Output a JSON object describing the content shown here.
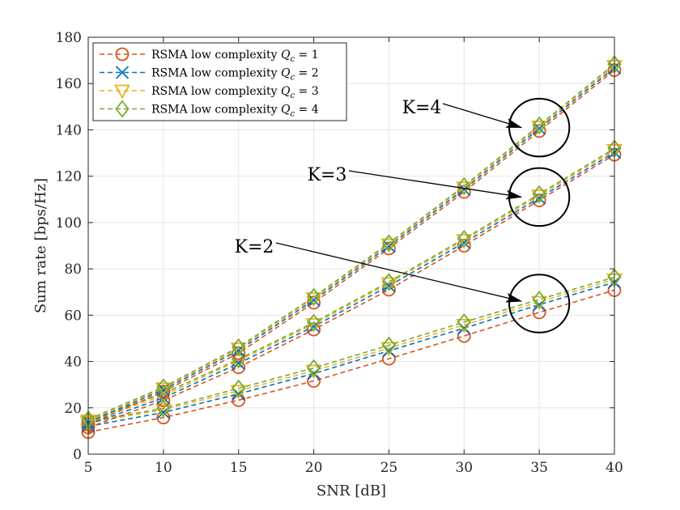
{
  "chart_data": {
    "type": "line",
    "xlabel": "SNR [dB]",
    "ylabel": "Sum rate [bps/Hz]",
    "xlim": [
      5,
      40
    ],
    "ylim": [
      0,
      180
    ],
    "xticks": [
      5,
      10,
      15,
      20,
      25,
      30,
      35,
      40
    ],
    "yticks": [
      0,
      20,
      40,
      60,
      80,
      100,
      120,
      140,
      160,
      180
    ],
    "grid": true,
    "legend_position": "top-left",
    "x": [
      5,
      10,
      15,
      20,
      25,
      30,
      35,
      40
    ],
    "series": [
      {
        "name": "RSMA low complexity Qc = 1",
        "legend_prefix": "RSMA low complexity ",
        "legend_var": "Q",
        "legend_sub": "c",
        "legend_suffix": " = 1",
        "color": "#d95319",
        "marker": "circle",
        "group": "K=2",
        "values": [
          9.5,
          15.8,
          23.3,
          31.6,
          41.2,
          51.0,
          61.2,
          70.8
        ]
      },
      {
        "name": "RSMA low complexity Qc = 2",
        "legend_prefix": "RSMA low complexity ",
        "legend_var": "Q",
        "legend_sub": "c",
        "legend_suffix": " = 2",
        "color": "#0072bd",
        "marker": "x",
        "group": "K=2",
        "values": [
          12.0,
          18.0,
          26.0,
          34.8,
          44.6,
          54.4,
          64.5,
          74.2
        ]
      },
      {
        "name": "RSMA low complexity Qc = 3",
        "legend_prefix": "RSMA low complexity ",
        "legend_var": "Q",
        "legend_sub": "c",
        "legend_suffix": " = 3",
        "color": "#edb120",
        "marker": "triangle-down",
        "group": "K=2",
        "values": [
          13.5,
          19.2,
          27.3,
          36.0,
          45.8,
          55.8,
          65.7,
          75.4
        ]
      },
      {
        "name": "RSMA low complexity Qc = 4",
        "legend_prefix": "RSMA low complexity ",
        "legend_var": "Q",
        "legend_sub": "c",
        "legend_suffix": " = 4",
        "color": "#77ac30",
        "marker": "diamond",
        "group": "K=2",
        "values": [
          14.0,
          19.8,
          28.4,
          37.2,
          47.0,
          57.0,
          66.8,
          76.4
        ]
      },
      {
        "color": "#d95319",
        "marker": "circle",
        "group": "K=3",
        "values": [
          11.5,
          23.2,
          37.5,
          53.8,
          71.0,
          90.0,
          109.6,
          129.3
        ]
      },
      {
        "color": "#0072bd",
        "marker": "x",
        "group": "K=3",
        "values": [
          12.8,
          24.3,
          39.2,
          55.1,
          72.6,
          91.3,
          110.6,
          130.3
        ]
      },
      {
        "color": "#edb120",
        "marker": "triangle-down",
        "group": "K=3",
        "values": [
          13.8,
          25.4,
          40.4,
          56.1,
          73.8,
          92.4,
          111.6,
          131.3
        ]
      },
      {
        "color": "#77ac30",
        "marker": "diamond",
        "group": "K=3",
        "values": [
          14.5,
          26.2,
          41.0,
          56.8,
          74.4,
          93.0,
          112.3,
          132.0
        ]
      },
      {
        "color": "#d95319",
        "marker": "circle",
        "group": "K=4",
        "values": [
          12.8,
          27.0,
          43.6,
          65.4,
          88.8,
          113.2,
          139.5,
          165.8
        ]
      },
      {
        "color": "#0072bd",
        "marker": "x",
        "group": "K=4",
        "values": [
          13.8,
          27.8,
          44.8,
          66.5,
          89.8,
          114.3,
          140.6,
          166.8
        ]
      },
      {
        "color": "#edb120",
        "marker": "triangle-down",
        "group": "K=4",
        "values": [
          14.5,
          28.4,
          45.6,
          67.3,
          90.5,
          115.1,
          141.4,
          167.6
        ]
      },
      {
        "color": "#77ac30",
        "marker": "diamond",
        "group": "K=4",
        "values": [
          15.0,
          28.9,
          46.2,
          67.9,
          91.1,
          115.8,
          142.0,
          168.4
        ]
      }
    ],
    "annotations": [
      {
        "text": "K=2",
        "arrow_to": [
          35,
          66
        ],
        "ellipse_center": [
          35,
          65
        ],
        "ellipse_radius": [
          2.0,
          12.5
        ]
      },
      {
        "text": "K=3",
        "arrow_to": [
          35,
          111
        ],
        "ellipse_center": [
          35,
          111
        ],
        "ellipse_radius": [
          2.0,
          12.5
        ]
      },
      {
        "text": "K=4",
        "arrow_to": [
          35,
          141
        ],
        "ellipse_center": [
          35,
          141
        ],
        "ellipse_radius": [
          2.0,
          12.5
        ]
      }
    ]
  }
}
